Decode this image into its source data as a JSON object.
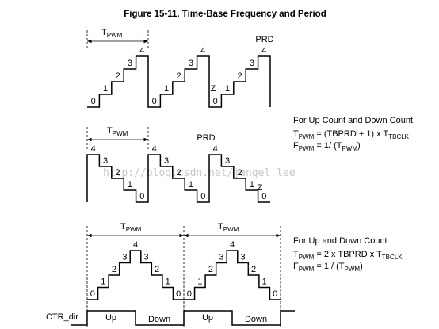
{
  "title": "Figure 15-11. Time-Base Frequency and Period",
  "period_label": [
    {
      "t": "T"
    },
    {
      "s": "PWM"
    }
  ],
  "up_count": {
    "levels": [
      "0",
      "1",
      "2",
      "3",
      "4"
    ],
    "prd": "PRD",
    "zero": "Z"
  },
  "down_count": {
    "levels": [
      "4",
      "3",
      "2",
      "1",
      "0"
    ],
    "prd": "PRD",
    "zero": "Z"
  },
  "up_down": {
    "levels": [
      "0",
      "1",
      "2",
      "3",
      "4",
      "3",
      "2",
      "1",
      "0"
    ]
  },
  "note_up_or_down": {
    "heading": "For Up Count and Down Count",
    "lines": [
      [
        {
          "t": "T"
        },
        {
          "s": "PWM"
        },
        {
          "t": " = (TBPRD + 1) x T"
        },
        {
          "s": "TBCLK"
        }
      ],
      [
        {
          "t": "F"
        },
        {
          "s": "PWM"
        },
        {
          "t": " = 1/ (T"
        },
        {
          "s": "PWM"
        },
        {
          "t": ")"
        }
      ]
    ]
  },
  "note_up_and_down": {
    "heading": "For Up and Down Count",
    "lines": [
      [
        {
          "t": "T"
        },
        {
          "s": "PWM"
        },
        {
          "t": " = 2 x TBPRD x T"
        },
        {
          "s": "TBCLK"
        }
      ],
      [
        {
          "t": "F"
        },
        {
          "s": "PWM"
        },
        {
          "t": " = 1 / (T"
        },
        {
          "s": "PWM"
        },
        {
          "t": ")"
        }
      ]
    ]
  },
  "ctr_dir": {
    "label": "CTR_dir",
    "phases": [
      "Up",
      "Down",
      "Up",
      "Down"
    ]
  },
  "watermark": "http://blog.csdn.net/jangel_lee"
}
